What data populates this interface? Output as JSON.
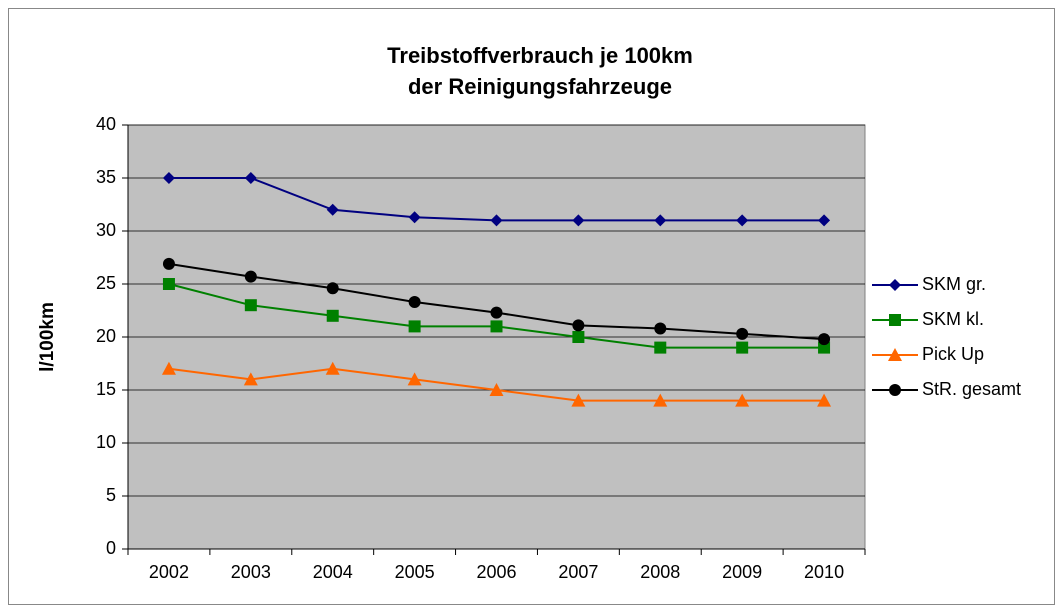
{
  "chart_data": {
    "type": "line",
    "title": [
      "Treibstoffverbrauch je 100km",
      "der Reinigungsfahrzeuge"
    ],
    "y_label": "l/100km",
    "categories": [
      "2002",
      "2003",
      "2004",
      "2005",
      "2006",
      "2007",
      "2008",
      "2009",
      "2010"
    ],
    "series": [
      {
        "name": "SKM gr.",
        "color": "#000080",
        "marker": "diamond",
        "values": [
          35,
          35,
          32,
          31.3,
          31,
          31,
          31,
          31,
          31
        ]
      },
      {
        "name": "SKM kl.",
        "color": "#008000",
        "marker": "square",
        "values": [
          25,
          23,
          22,
          21,
          21,
          20,
          19,
          19,
          19
        ]
      },
      {
        "name": "Pick Up",
        "color": "#ff6600",
        "marker": "triangle",
        "values": [
          17,
          16,
          17,
          16,
          15,
          14,
          14,
          14,
          14
        ]
      },
      {
        "name": "StR. gesamt",
        "color": "#000000",
        "marker": "circle",
        "values": [
          26.9,
          25.7,
          24.6,
          23.3,
          22.3,
          21.1,
          20.8,
          20.3,
          19.8
        ]
      }
    ],
    "ylim": [
      0,
      40
    ],
    "yticks": [
      0,
      5,
      10,
      15,
      20,
      25,
      30,
      35,
      40
    ],
    "grid": true,
    "legend": "right"
  }
}
